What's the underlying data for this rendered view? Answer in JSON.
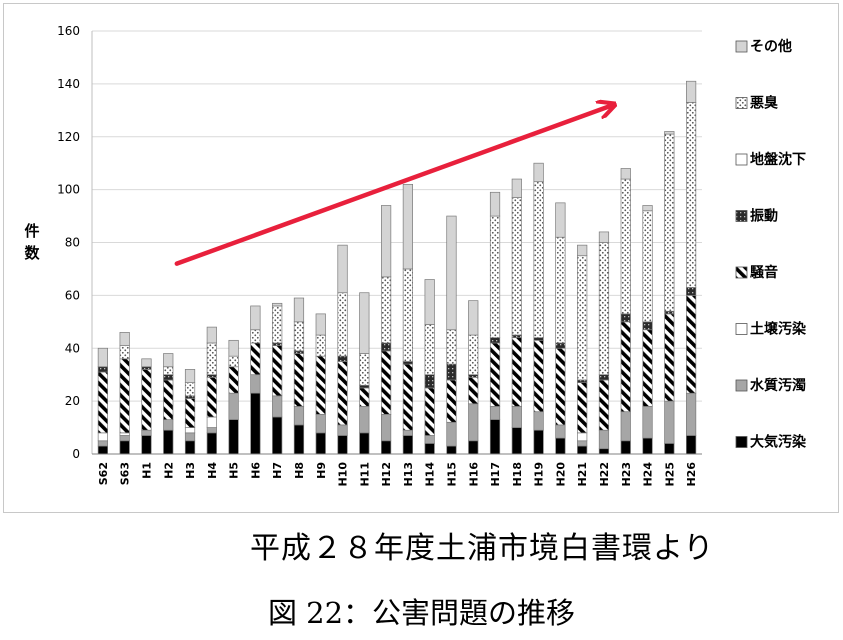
{
  "credit": "平成２８年度土浦市境白書環より",
  "caption": "図 22：公害問題の推移",
  "chart_data": {
    "type": "bar",
    "stacked": true,
    "ylabel": "件数",
    "ylim": [
      0,
      160
    ],
    "yticks": [
      0,
      20,
      40,
      60,
      80,
      100,
      120,
      140,
      160
    ],
    "categories": [
      "S62",
      "S63",
      "H1",
      "H2",
      "H3",
      "H4",
      "H5",
      "H6",
      "H7",
      "H8",
      "H9",
      "H10",
      "H11",
      "H12",
      "H13",
      "H14",
      "H15",
      "H16",
      "H17",
      "H18",
      "H19",
      "H20",
      "H21",
      "H22",
      "H23",
      "H24",
      "H25",
      "H26"
    ],
    "series": [
      {
        "name": "大気汚染",
        "fill": "black",
        "values": [
          3,
          5,
          7,
          9,
          5,
          8,
          13,
          23,
          14,
          11,
          8,
          7,
          8,
          5,
          7,
          4,
          3,
          5,
          13,
          10,
          9,
          6,
          3,
          2,
          5,
          6,
          4,
          7
        ]
      },
      {
        "name": "水質汚濁",
        "fill": "gray",
        "values": [
          2,
          2,
          2,
          4,
          3,
          2,
          10,
          7,
          8,
          7,
          7,
          4,
          10,
          10,
          2,
          3,
          9,
          14,
          5,
          8,
          7,
          5,
          2,
          7,
          11,
          12,
          16,
          16
        ]
      },
      {
        "name": "土壌汚染",
        "fill": "white",
        "values": [
          3,
          1,
          0,
          0,
          2,
          4,
          0,
          0,
          0,
          0,
          0,
          0,
          0,
          0,
          0,
          0,
          0,
          0,
          0,
          0,
          0,
          0,
          3,
          0,
          0,
          0,
          0,
          0
        ]
      },
      {
        "name": "騒音",
        "fill": "hatch",
        "values": [
          23,
          28,
          23,
          15,
          11,
          15,
          10,
          12,
          19,
          20,
          22,
          24,
          7,
          24,
          25,
          18,
          16,
          10,
          24,
          26,
          27,
          29,
          19,
          19,
          34,
          29,
          33,
          37
        ]
      },
      {
        "name": "振動",
        "fill": "dark",
        "values": [
          2,
          0,
          1,
          2,
          1,
          1,
          0,
          0,
          1,
          1,
          0,
          2,
          1,
          3,
          1,
          5,
          6,
          1,
          2,
          1,
          1,
          2,
          1,
          2,
          3,
          3,
          1,
          3
        ]
      },
      {
        "name": "地盤沈下",
        "fill": "white",
        "values": [
          0,
          0,
          0,
          0,
          0,
          0,
          0,
          0,
          0,
          0,
          0,
          0,
          0,
          0,
          0,
          0,
          0,
          0,
          0,
          0,
          0,
          0,
          0,
          0,
          0,
          0,
          0,
          0
        ]
      },
      {
        "name": "悪臭",
        "fill": "dots",
        "values": [
          0,
          5,
          0,
          3,
          5,
          12,
          4,
          5,
          14,
          11,
          8,
          24,
          12,
          25,
          35,
          19,
          13,
          15,
          46,
          52,
          59,
          40,
          47,
          50,
          51,
          42,
          67,
          70
        ]
      },
      {
        "name": "その他",
        "fill": "lgray",
        "values": [
          7,
          5,
          3,
          5,
          5,
          6,
          6,
          9,
          1,
          9,
          8,
          18,
          23,
          27,
          32,
          17,
          43,
          13,
          9,
          7,
          7,
          13,
          4,
          4,
          4,
          2,
          1,
          8
        ]
      }
    ],
    "legend": "right",
    "legend_order": [
      "その他",
      "悪臭",
      "地盤沈下",
      "振動",
      "騒音",
      "土壌汚染",
      "水質汚濁",
      "大気汚染"
    ],
    "annotation": {
      "type": "arrow",
      "color": "#e8203c",
      "from": [
        "H4",
        72
      ],
      "to": [
        "H22",
        132
      ]
    }
  }
}
